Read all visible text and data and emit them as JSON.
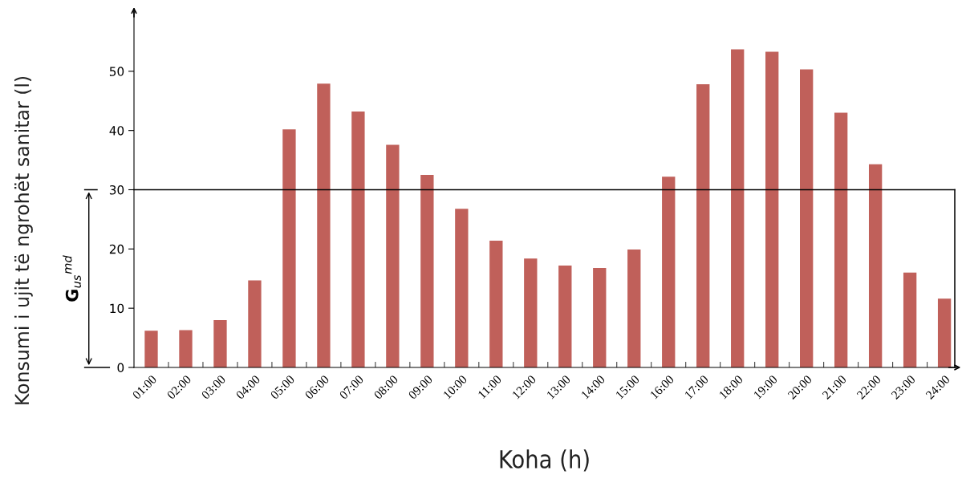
{
  "chart_data": {
    "type": "bar",
    "xlabel": "Koha (h)",
    "ylabel": "Konsumi i ujit të ngrohët sanitar (l)",
    "categories": [
      "01:00",
      "02:00",
      "03:00",
      "04:00",
      "05:00",
      "06:00",
      "07:00",
      "08:00",
      "09:00",
      "10:00",
      "11:00",
      "12:00",
      "13:00",
      "14:00",
      "15:00",
      "16:00",
      "17:00",
      "18:00",
      "19:00",
      "20:00",
      "21:00",
      "22:00",
      "23:00",
      "24:00"
    ],
    "values": [
      6.2,
      6.3,
      8.0,
      14.7,
      40.2,
      47.9,
      43.2,
      37.6,
      32.5,
      26.8,
      21.4,
      18.4,
      17.2,
      16.8,
      19.9,
      32.2,
      47.8,
      53.7,
      53.3,
      50.3,
      43.0,
      34.3,
      16.0,
      11.6
    ],
    "color": "#c0605a",
    "ylim": [
      0,
      60
    ],
    "yticks": [
      0,
      10,
      20,
      30,
      40,
      50
    ],
    "ref_lines": [
      {
        "axis": "y",
        "value": 30,
        "label": "G$_{us}$$^{md}$",
        "color": "#000000"
      }
    ],
    "grid": false
  }
}
